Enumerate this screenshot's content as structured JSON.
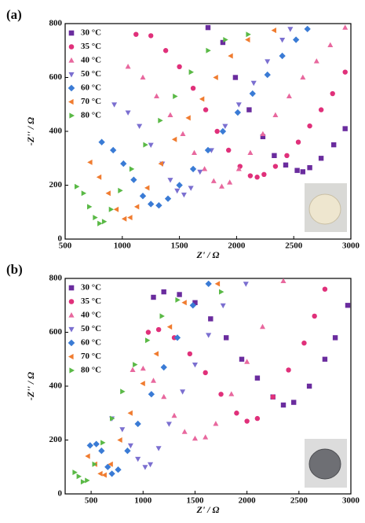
{
  "chart_data": [
    {
      "type": "scatter",
      "title": "(a)",
      "x_label": "Z' / Ω",
      "y_label": "-Z'' / Ω",
      "xlim": [
        500,
        3000
      ],
      "xticks": [
        500,
        1000,
        1500,
        2000,
        2500,
        3000
      ],
      "ylim": [
        0,
        800
      ],
      "yticks": [
        0,
        200,
        400,
        600,
        800
      ],
      "legend": "upper left",
      "series": [
        {
          "name": "30 °C",
          "color": "#6a2c9e",
          "marker": "square",
          "x": [
            1750,
            1880,
            1990,
            2110,
            2230,
            2330,
            2430,
            2530,
            2580,
            2640,
            2740,
            2850,
            2950
          ],
          "values": [
            785,
            730,
            600,
            480,
            380,
            310,
            275,
            255,
            250,
            265,
            300,
            350,
            410
          ]
        },
        {
          "name": "35 °C",
          "color": "#e0307a",
          "marker": "circle",
          "x": [
            1120,
            1250,
            1380,
            1500,
            1620,
            1730,
            1830,
            1930,
            2030,
            2120,
            2180,
            2240,
            2340,
            2440,
            2540,
            2640,
            2740,
            2840,
            2950
          ],
          "values": [
            760,
            755,
            700,
            640,
            560,
            480,
            400,
            330,
            270,
            235,
            230,
            240,
            270,
            310,
            360,
            420,
            480,
            540,
            620
          ]
        },
        {
          "name": "40 °C",
          "color": "#e8689e",
          "marker": "triangle-up",
          "x": [
            1050,
            1180,
            1300,
            1420,
            1530,
            1630,
            1720,
            1800,
            1870,
            1940,
            2020,
            2120,
            2230,
            2340,
            2460,
            2580,
            2700,
            2820,
            2950
          ],
          "values": [
            640,
            600,
            530,
            460,
            390,
            320,
            260,
            215,
            195,
            210,
            260,
            320,
            390,
            460,
            530,
            600,
            660,
            720,
            785
          ]
        },
        {
          "name": "50 °C",
          "color": "#7b6fd0",
          "marker": "triangle-down",
          "x": [
            930,
            1050,
            1150,
            1250,
            1350,
            1420,
            1480,
            1540,
            1600,
            1680,
            1780,
            1900,
            2020,
            2150,
            2270,
            2400,
            2470
          ],
          "values": [
            500,
            470,
            420,
            350,
            280,
            220,
            180,
            165,
            190,
            250,
            330,
            420,
            500,
            580,
            660,
            740,
            780
          ]
        },
        {
          "name": "60 °C",
          "color": "#3a7bd5",
          "marker": "diamond",
          "x": [
            820,
            920,
            1010,
            1100,
            1180,
            1250,
            1320,
            1400,
            1500,
            1620,
            1750,
            1880,
            2010,
            2140,
            2270,
            2400,
            2520,
            2620
          ],
          "values": [
            360,
            330,
            280,
            220,
            160,
            130,
            125,
            150,
            200,
            260,
            330,
            400,
            470,
            540,
            610,
            680,
            740,
            780
          ]
        },
        {
          "name": "70 °C",
          "color": "#f07c30",
          "marker": "triangle-left",
          "x": [
            720,
            800,
            880,
            950,
            1020,
            1070,
            1130,
            1220,
            1340,
            1460,
            1580,
            1700,
            1820,
            1950,
            2100,
            2330
          ],
          "values": [
            285,
            230,
            170,
            110,
            75,
            80,
            120,
            190,
            280,
            370,
            450,
            520,
            600,
            680,
            740,
            775
          ]
        },
        {
          "name": "80 °C",
          "color": "#5ab946",
          "marker": "triangle-right",
          "x": [
            600,
            660,
            710,
            760,
            800,
            840,
            900,
            980,
            1080,
            1200,
            1330,
            1460,
            1600,
            1750,
            1900,
            2100
          ],
          "values": [
            195,
            170,
            120,
            80,
            58,
            65,
            110,
            180,
            260,
            350,
            440,
            530,
            620,
            700,
            740,
            760
          ]
        }
      ]
    },
    {
      "type": "scatter",
      "title": "(b)",
      "x_label": "Z' / Ω",
      "y_label": "-Z'' / Ω",
      "xlim": [
        250,
        3000
      ],
      "xticks": [
        500,
        1000,
        1500,
        2000,
        2500,
        3000
      ],
      "ylim": [
        0,
        800
      ],
      "yticks": [
        0,
        200,
        400,
        600,
        800
      ],
      "legend": "upper left",
      "series": [
        {
          "name": "30 °C",
          "color": "#6a2c9e",
          "marker": "square",
          "x": [
            1100,
            1200,
            1350,
            1500,
            1650,
            1800,
            1950,
            2100,
            2250,
            2350,
            2450,
            2600,
            2750,
            2850,
            2970
          ],
          "values": [
            730,
            750,
            740,
            710,
            650,
            580,
            500,
            430,
            360,
            330,
            340,
            400,
            500,
            580,
            700
          ]
        },
        {
          "name": "35 °C",
          "color": "#e0307a",
          "marker": "circle",
          "x": [
            1050,
            1150,
            1300,
            1450,
            1600,
            1750,
            1900,
            2000,
            2100,
            2250,
            2400,
            2550,
            2650,
            2750
          ],
          "values": [
            600,
            610,
            580,
            520,
            450,
            370,
            300,
            270,
            280,
            360,
            460,
            560,
            660,
            760
          ]
        },
        {
          "name": "40 °C",
          "color": "#e8689e",
          "marker": "triangle-up",
          "x": [
            900,
            1000,
            1100,
            1200,
            1300,
            1400,
            1500,
            1600,
            1700,
            1850,
            2000,
            2150,
            2350
          ],
          "values": [
            460,
            465,
            420,
            360,
            290,
            230,
            205,
            210,
            260,
            370,
            490,
            620,
            790
          ]
        },
        {
          "name": "50 °C",
          "color": "#7b6fd0",
          "marker": "triangle-down",
          "x": [
            700,
            800,
            880,
            950,
            1020,
            1070,
            1150,
            1250,
            1380,
            1500,
            1630,
            1770,
            1990
          ],
          "values": [
            280,
            240,
            180,
            130,
            100,
            110,
            170,
            260,
            380,
            480,
            590,
            700,
            780
          ]
        },
        {
          "name": "60 °C",
          "color": "#3a7bd5",
          "marker": "diamond",
          "x": [
            490,
            550,
            600,
            660,
            700,
            760,
            850,
            950,
            1080,
            1200,
            1330,
            1480,
            1630
          ],
          "values": [
            180,
            185,
            160,
            100,
            75,
            90,
            160,
            260,
            370,
            470,
            580,
            700,
            780
          ]
        },
        {
          "name": "70 °C",
          "color": "#f07c30",
          "marker": "triangle-left",
          "x": [
            470,
            540,
            590,
            630,
            690,
            780,
            880,
            1000,
            1130,
            1260,
            1400,
            1720
          ],
          "values": [
            140,
            110,
            75,
            70,
            110,
            200,
            300,
            410,
            520,
            620,
            710,
            780
          ]
        },
        {
          "name": "80 °C",
          "color": "#5ab946",
          "marker": "triangle-right",
          "x": [
            340,
            380,
            420,
            460,
            530,
            610,
            700,
            800,
            920,
            1040,
            1180,
            1330,
            1750
          ],
          "values": [
            80,
            65,
            45,
            50,
            110,
            190,
            280,
            380,
            480,
            570,
            660,
            720,
            750
          ]
        }
      ]
    }
  ]
}
